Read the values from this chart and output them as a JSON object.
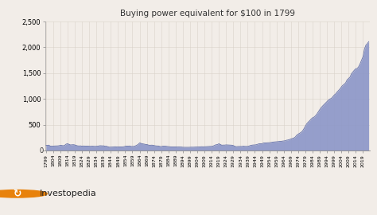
{
  "title": "Buying power equivalent for $100 in 1799",
  "background_color": "#f2ede8",
  "plot_bg_color": "#f2ede8",
  "fill_color": "#8b96c8",
  "line_color": "#6370a8",
  "fill_alpha": 0.9,
  "ylim": [
    0,
    2500
  ],
  "yticks": [
    0,
    500,
    1000,
    1500,
    2000,
    2500
  ],
  "grid_color": "#d8d0c8",
  "grid_alpha": 0.9,
  "investopedia_text": "Investopedia",
  "data_years": [
    1799,
    1800,
    1801,
    1802,
    1803,
    1804,
    1805,
    1806,
    1807,
    1808,
    1809,
    1810,
    1811,
    1812,
    1813,
    1814,
    1815,
    1816,
    1817,
    1818,
    1819,
    1820,
    1821,
    1822,
    1823,
    1824,
    1825,
    1826,
    1827,
    1828,
    1829,
    1830,
    1831,
    1832,
    1833,
    1834,
    1835,
    1836,
    1837,
    1838,
    1839,
    1840,
    1841,
    1842,
    1843,
    1844,
    1845,
    1846,
    1847,
    1848,
    1849,
    1850,
    1851,
    1852,
    1853,
    1854,
    1855,
    1856,
    1857,
    1858,
    1859,
    1860,
    1861,
    1862,
    1863,
    1864,
    1865,
    1866,
    1867,
    1868,
    1869,
    1870,
    1871,
    1872,
    1873,
    1874,
    1875,
    1876,
    1877,
    1878,
    1879,
    1880,
    1881,
    1882,
    1883,
    1884,
    1885,
    1886,
    1887,
    1888,
    1889,
    1890,
    1891,
    1892,
    1893,
    1894,
    1895,
    1896,
    1897,
    1898,
    1899,
    1900,
    1901,
    1902,
    1903,
    1904,
    1905,
    1906,
    1907,
    1908,
    1909,
    1910,
    1911,
    1912,
    1913,
    1914,
    1915,
    1916,
    1917,
    1918,
    1919,
    1920,
    1921,
    1922,
    1923,
    1924,
    1925,
    1926,
    1927,
    1928,
    1929,
    1930,
    1931,
    1932,
    1933,
    1934,
    1935,
    1936,
    1937,
    1938,
    1939,
    1940,
    1941,
    1942,
    1943,
    1944,
    1945,
    1946,
    1947,
    1948,
    1949,
    1950,
    1951,
    1952,
    1953,
    1954,
    1955,
    1956,
    1957,
    1958,
    1959,
    1960,
    1961,
    1962,
    1963,
    1964,
    1965,
    1966,
    1967,
    1968,
    1969,
    1970,
    1971,
    1972,
    1973,
    1974,
    1975,
    1976,
    1977,
    1978,
    1979,
    1980,
    1981,
    1982,
    1983,
    1984,
    1985,
    1986,
    1987,
    1988,
    1989,
    1990,
    1991,
    1992,
    1993,
    1994,
    1995,
    1996,
    1997,
    1998,
    1999,
    2000,
    2001,
    2002,
    2003,
    2004,
    2005,
    2006,
    2007,
    2008,
    2009,
    2010,
    2011,
    2012,
    2013,
    2014,
    2015,
    2016,
    2017,
    2018,
    2019,
    2020,
    2021,
    2022,
    2023
  ],
  "data_values": [
    100,
    100,
    104,
    85,
    83,
    86,
    88,
    89,
    90,
    93,
    100,
    98,
    92,
    102,
    124,
    131,
    120,
    108,
    111,
    113,
    108,
    98,
    90,
    88,
    90,
    84,
    88,
    86,
    86,
    84,
    83,
    81,
    84,
    82,
    80,
    82,
    84,
    91,
    93,
    90,
    91,
    82,
    83,
    72,
    65,
    66,
    67,
    68,
    74,
    68,
    69,
    70,
    71,
    70,
    74,
    82,
    86,
    84,
    88,
    79,
    79,
    80,
    89,
    102,
    118,
    147,
    138,
    129,
    125,
    118,
    117,
    106,
    101,
    104,
    103,
    96,
    91,
    88,
    88,
    79,
    76,
    84,
    83,
    83,
    79,
    76,
    73,
    70,
    70,
    70,
    70,
    67,
    68,
    67,
    67,
    63,
    62,
    62,
    62,
    62,
    64,
    65,
    64,
    66,
    67,
    67,
    68,
    71,
    74,
    71,
    73,
    76,
    77,
    79,
    80,
    80,
    87,
    99,
    112,
    114,
    131,
    117,
    103,
    105,
    105,
    109,
    108,
    106,
    104,
    103,
    96,
    83,
    74,
    78,
    79,
    79,
    79,
    84,
    80,
    80,
    80,
    88,
    98,
    104,
    107,
    108,
    113,
    122,
    131,
    131,
    134,
    145,
    148,
    148,
    151,
    151,
    156,
    162,
    165,
    167,
    170,
    172,
    176,
    178,
    182,
    185,
    189,
    200,
    204,
    213,
    224,
    234,
    242,
    261,
    295,
    317,
    333,
    352,
    377,
    420,
    472,
    519,
    551,
    578,
    610,
    634,
    647,
    671,
    706,
    749,
    793,
    831,
    863,
    891,
    921,
    945,
    976,
    998,
    1009,
    1040,
    1074,
    1097,
    1133,
    1163,
    1192,
    1232,
    1263,
    1285,
    1313,
    1370,
    1395,
    1422,
    1487,
    1521,
    1557,
    1585,
    1590,
    1625,
    1682,
    1751,
    1817,
    1964,
    2040,
    2070,
    2110
  ]
}
